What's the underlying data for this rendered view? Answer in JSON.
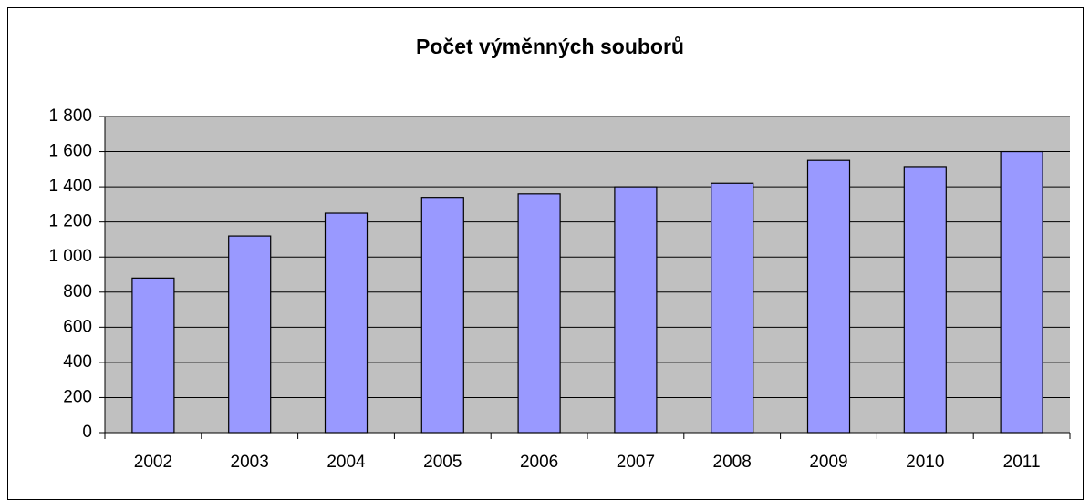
{
  "chart_data": {
    "type": "bar",
    "title": "Počet výměnných souborů",
    "categories": [
      "2002",
      "2003",
      "2004",
      "2005",
      "2006",
      "2007",
      "2008",
      "2009",
      "2010",
      "2011"
    ],
    "values": [
      880,
      1120,
      1250,
      1340,
      1360,
      1400,
      1420,
      1550,
      1515,
      1600
    ],
    "color": "#9999ff",
    "plot_background": "#c0c0c0",
    "ylim": [
      0,
      1800
    ],
    "yticks": [
      0,
      200,
      400,
      600,
      800,
      {
        "value": 1000,
        "label": "1 000"
      },
      {
        "value": 1200,
        "label": "1 200"
      },
      {
        "value": 1400,
        "label": "1 400"
      },
      {
        "value": 1600,
        "label": "1 600"
      },
      {
        "value": 1800,
        "label": "1 800"
      }
    ],
    "grid": true
  }
}
